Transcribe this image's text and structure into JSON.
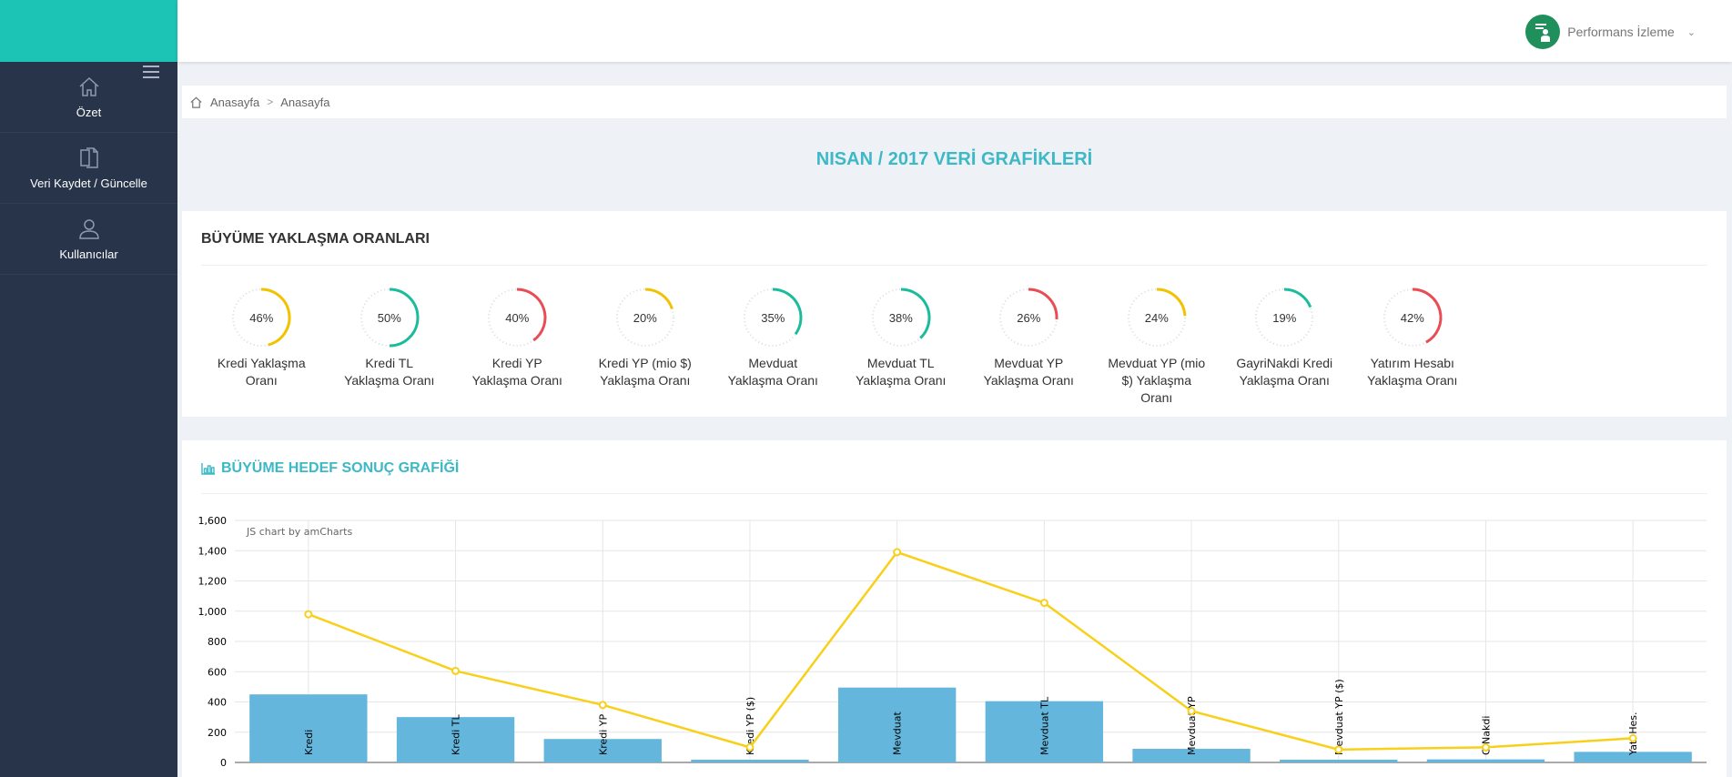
{
  "header": {
    "user_name": "Performans İzleme"
  },
  "sidebar": {
    "items": [
      {
        "label": "Özet",
        "icon": "home-icon"
      },
      {
        "label": "Veri Kaydet / Güncelle",
        "icon": "documents-icon"
      },
      {
        "label": "Kullanıcılar",
        "icon": "user-icon"
      }
    ]
  },
  "breadcrumb": {
    "items": [
      "Anasayfa",
      "Anasayfa"
    ]
  },
  "page_title": "NISAN / 2017 VERİ GRAFİKLERİ",
  "growth_rates": {
    "title": "BÜYÜME YAKLAŞMA ORANLARI",
    "gauges": [
      {
        "value": 46,
        "text": "46%",
        "label": "Kredi Yaklaşma Oranı",
        "color": "#f2c200"
      },
      {
        "value": 50,
        "text": "50%",
        "label": "Kredi TL Yaklaşma Oranı",
        "color": "#1bbc9b"
      },
      {
        "value": 40,
        "text": "40%",
        "label": "Kredi YP Yaklaşma Oranı",
        "color": "#e84c55"
      },
      {
        "value": 20,
        "text": "20%",
        "label": "Kredi YP (mio $) Yaklaşma Oranı",
        "color": "#f2c200"
      },
      {
        "value": 35,
        "text": "35%",
        "label": "Mevduat Yaklaşma Oranı",
        "color": "#1bbc9b"
      },
      {
        "value": 38,
        "text": "38%",
        "label": "Mevduat TL Yaklaşma Oranı",
        "color": "#1bbc9b"
      },
      {
        "value": 26,
        "text": "26%",
        "label": "Mevduat YP Yaklaşma Oranı",
        "color": "#e84c55"
      },
      {
        "value": 24,
        "text": "24%",
        "label": "Mevduat YP (mio $) Yaklaşma Oranı",
        "color": "#f2c200"
      },
      {
        "value": 19,
        "text": "19%",
        "label": "GayriNakdi Kredi Yaklaşma Oranı",
        "color": "#1bbc9b"
      },
      {
        "value": 42,
        "text": "42%",
        "label": "Yatırım Hesabı Yaklaşma Oranı",
        "color": "#e84c55"
      }
    ]
  },
  "target_chart": {
    "title": "BÜYÜME HEDEF SONUÇ GRAFİĞİ",
    "watermark": "JS chart by amCharts"
  },
  "chart_data": {
    "type": "bar",
    "categories": [
      "Kredi",
      "Kredi TL",
      "Kredi YP",
      "Kredi YP ($)",
      "Mevduat",
      "Mevduat TL",
      "Mevduat YP",
      "Mevduat YP ($)",
      "G.Nakdi",
      "Yat. Hes."
    ],
    "series": [
      {
        "type": "bar",
        "values": [
          450,
          300,
          155,
          18,
          495,
          405,
          90,
          18,
          20,
          70
        ],
        "color": "#65b6dd"
      },
      {
        "type": "line",
        "values": [
          980,
          605,
          380,
          100,
          1390,
          1055,
          340,
          85,
          100,
          160
        ],
        "color": "#f8d01a"
      }
    ],
    "ylim": [
      0,
      1600
    ],
    "yticks": [
      "0",
      "200",
      "400",
      "600",
      "800",
      "1,000",
      "1,200",
      "1,400",
      "1,600"
    ],
    "grid": true
  }
}
